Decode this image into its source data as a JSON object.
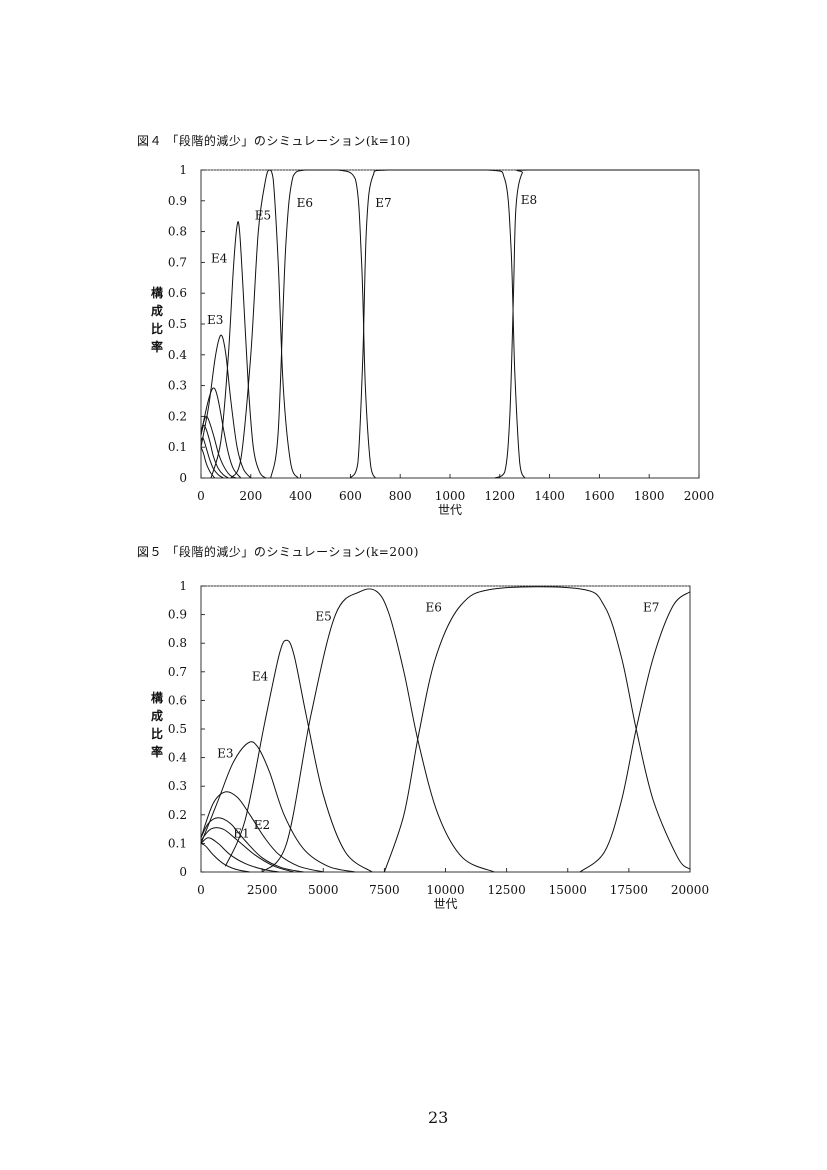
{
  "page_number": "23",
  "chart_data": [
    {
      "type": "line",
      "title": "図４ 「段階的減少」のシミュレーション(k=10)",
      "xlabel": "世代",
      "ylabel": "構成比率",
      "xlim": [
        0,
        2000
      ],
      "ylim": [
        0,
        1
      ],
      "xticks": [
        "0",
        "200",
        "400",
        "600",
        "800",
        "1000",
        "1200",
        "1400",
        "1600",
        "1800",
        "2000"
      ],
      "yticks": [
        "0",
        "0.1",
        "0.2",
        "0.3",
        "0.4",
        "0.5",
        "0.6",
        "0.7",
        "0.8",
        "0.9",
        "1"
      ],
      "grid": false,
      "series": [
        {
          "name": "",
          "x": [
            0,
            10,
            20,
            30,
            40,
            55
          ],
          "y": [
            0.1,
            0.08,
            0.05,
            0.03,
            0.015,
            0.0
          ]
        },
        {
          "name": "",
          "x": [
            0,
            8,
            20,
            35,
            50,
            70,
            90
          ],
          "y": [
            0.12,
            0.13,
            0.1,
            0.06,
            0.03,
            0.01,
            0.0
          ]
        },
        {
          "name": "",
          "x": [
            0,
            10,
            20,
            35,
            50,
            70,
            90,
            110
          ],
          "y": [
            0.14,
            0.17,
            0.16,
            0.12,
            0.07,
            0.03,
            0.01,
            0.0
          ]
        },
        {
          "name": "",
          "x": [
            0,
            10,
            20,
            30,
            50,
            70,
            90,
            115,
            140
          ],
          "y": [
            0.15,
            0.18,
            0.2,
            0.19,
            0.14,
            0.08,
            0.04,
            0.01,
            0.0
          ]
        },
        {
          "name": "",
          "x": [
            0,
            20,
            40,
            55,
            70,
            90,
            110,
            130,
            160
          ],
          "y": [
            0.14,
            0.22,
            0.28,
            0.29,
            0.25,
            0.16,
            0.08,
            0.03,
            0.0
          ]
        },
        {
          "name": "E3",
          "x": [
            0,
            30,
            55,
            72,
            85,
            100,
            120,
            145,
            170,
            200
          ],
          "y": [
            0.1,
            0.23,
            0.38,
            0.45,
            0.46,
            0.4,
            0.25,
            0.1,
            0.03,
            0.0
          ]
        },
        {
          "name": "E4",
          "x": [
            40,
            80,
            110,
            130,
            145,
            155,
            170,
            190,
            210,
            235,
            260
          ],
          "y": [
            0.0,
            0.12,
            0.4,
            0.68,
            0.82,
            0.8,
            0.6,
            0.3,
            0.1,
            0.02,
            0.0
          ]
        },
        {
          "name": "E5",
          "x": [
            120,
            160,
            200,
            230,
            260,
            275,
            290,
            310,
            330,
            360,
            390
          ],
          "y": [
            0.0,
            0.06,
            0.4,
            0.8,
            0.97,
            1.0,
            0.97,
            0.7,
            0.3,
            0.05,
            0.0
          ]
        },
        {
          "name": "E6",
          "x": [
            280,
            310,
            340,
            370,
            420,
            550,
            620,
            645,
            660,
            680,
            700
          ],
          "y": [
            0.0,
            0.15,
            0.75,
            0.98,
            1.0,
            1.0,
            0.97,
            0.7,
            0.3,
            0.05,
            0.0
          ]
        },
        {
          "name": "E7",
          "x": [
            600,
            630,
            650,
            665,
            690,
            750,
            1150,
            1220,
            1245,
            1260,
            1280,
            1300
          ],
          "y": [
            0.0,
            0.05,
            0.4,
            0.82,
            0.98,
            1.0,
            1.0,
            0.97,
            0.75,
            0.35,
            0.05,
            0.0
          ]
        },
        {
          "name": "E8",
          "x": [
            1180,
            1220,
            1240,
            1255,
            1265,
            1290,
            1330,
            2000
          ],
          "y": [
            0.0,
            0.02,
            0.2,
            0.6,
            0.88,
            0.99,
            1.0,
            1.0
          ]
        }
      ],
      "labels": [
        "E3",
        "E4",
        "E5",
        "E6",
        "E7",
        "E8"
      ]
    },
    {
      "type": "line",
      "title": "図５ 「段階的減少」のシミュレーション(k=200)",
      "xlabel": "世代",
      "ylabel": "構成比率",
      "xlim": [
        0,
        20000
      ],
      "ylim": [
        0,
        1
      ],
      "xticks": [
        "0",
        "2500",
        "5000",
        "7500",
        "10000",
        "12500",
        "15000",
        "17500",
        "20000"
      ],
      "yticks": [
        "0",
        "0.1",
        "0.2",
        "0.3",
        "0.4",
        "0.5",
        "0.6",
        "0.7",
        "0.8",
        "0.9",
        "1"
      ],
      "grid": false,
      "series": [
        {
          "name": "",
          "x": [
            0,
            200,
            500,
            900,
            1400,
            2000
          ],
          "y": [
            0.1,
            0.09,
            0.06,
            0.03,
            0.01,
            0.0
          ]
        },
        {
          "name": "E1",
          "x": [
            0,
            300,
            700,
            1200,
            1800,
            2500,
            3200
          ],
          "y": [
            0.1,
            0.12,
            0.1,
            0.06,
            0.03,
            0.01,
            0.0
          ]
        },
        {
          "name": "E2",
          "x": [
            0,
            400,
            900,
            1500,
            2200,
            3000,
            3800
          ],
          "y": [
            0.11,
            0.15,
            0.15,
            0.11,
            0.06,
            0.02,
            0.0
          ]
        },
        {
          "name": "",
          "x": [
            0,
            300,
            700,
            1200,
            1800,
            2500,
            3300,
            4200
          ],
          "y": [
            0.12,
            0.17,
            0.19,
            0.17,
            0.11,
            0.05,
            0.015,
            0.0
          ]
        },
        {
          "name": "",
          "x": [
            0,
            500,
            1000,
            1500,
            2000,
            2600,
            3200,
            4000,
            5000
          ],
          "y": [
            0.12,
            0.24,
            0.28,
            0.26,
            0.2,
            0.12,
            0.06,
            0.02,
            0.0
          ]
        },
        {
          "name": "E3",
          "x": [
            0,
            700,
            1300,
            1900,
            2300,
            2800,
            3400,
            4200,
            5200,
            6300
          ],
          "y": [
            0.1,
            0.25,
            0.38,
            0.45,
            0.44,
            0.35,
            0.2,
            0.08,
            0.02,
            0.0
          ]
        },
        {
          "name": "E4",
          "x": [
            1000,
            1800,
            2600,
            3200,
            3500,
            3800,
            4300,
            5000,
            5900,
            7000
          ],
          "y": [
            0.02,
            0.18,
            0.52,
            0.76,
            0.81,
            0.76,
            0.55,
            0.27,
            0.07,
            0.0
          ]
        },
        {
          "name": "E5",
          "x": [
            2500,
            3500,
            4500,
            5500,
            6500,
            7200,
            7700,
            8300,
            8900,
            9700,
            10700,
            12000
          ],
          "y": [
            0.0,
            0.1,
            0.55,
            0.9,
            0.98,
            0.98,
            0.9,
            0.7,
            0.45,
            0.2,
            0.05,
            0.0
          ]
        },
        {
          "name": "E6",
          "x": [
            7500,
            8300,
            8900,
            9600,
            10600,
            12000,
            15500,
            16500,
            17200,
            17800,
            18500,
            19500,
            20000
          ],
          "y": [
            0.0,
            0.2,
            0.48,
            0.75,
            0.93,
            0.99,
            0.99,
            0.93,
            0.75,
            0.5,
            0.25,
            0.05,
            0.01
          ]
        },
        {
          "name": "E7",
          "x": [
            15500,
            16500,
            17200,
            17800,
            18500,
            19300,
            20000
          ],
          "y": [
            0.0,
            0.07,
            0.25,
            0.5,
            0.75,
            0.93,
            0.98
          ]
        }
      ],
      "labels": [
        "E1",
        "E2",
        "E3",
        "E4",
        "E5",
        "E6",
        "E7"
      ]
    }
  ]
}
